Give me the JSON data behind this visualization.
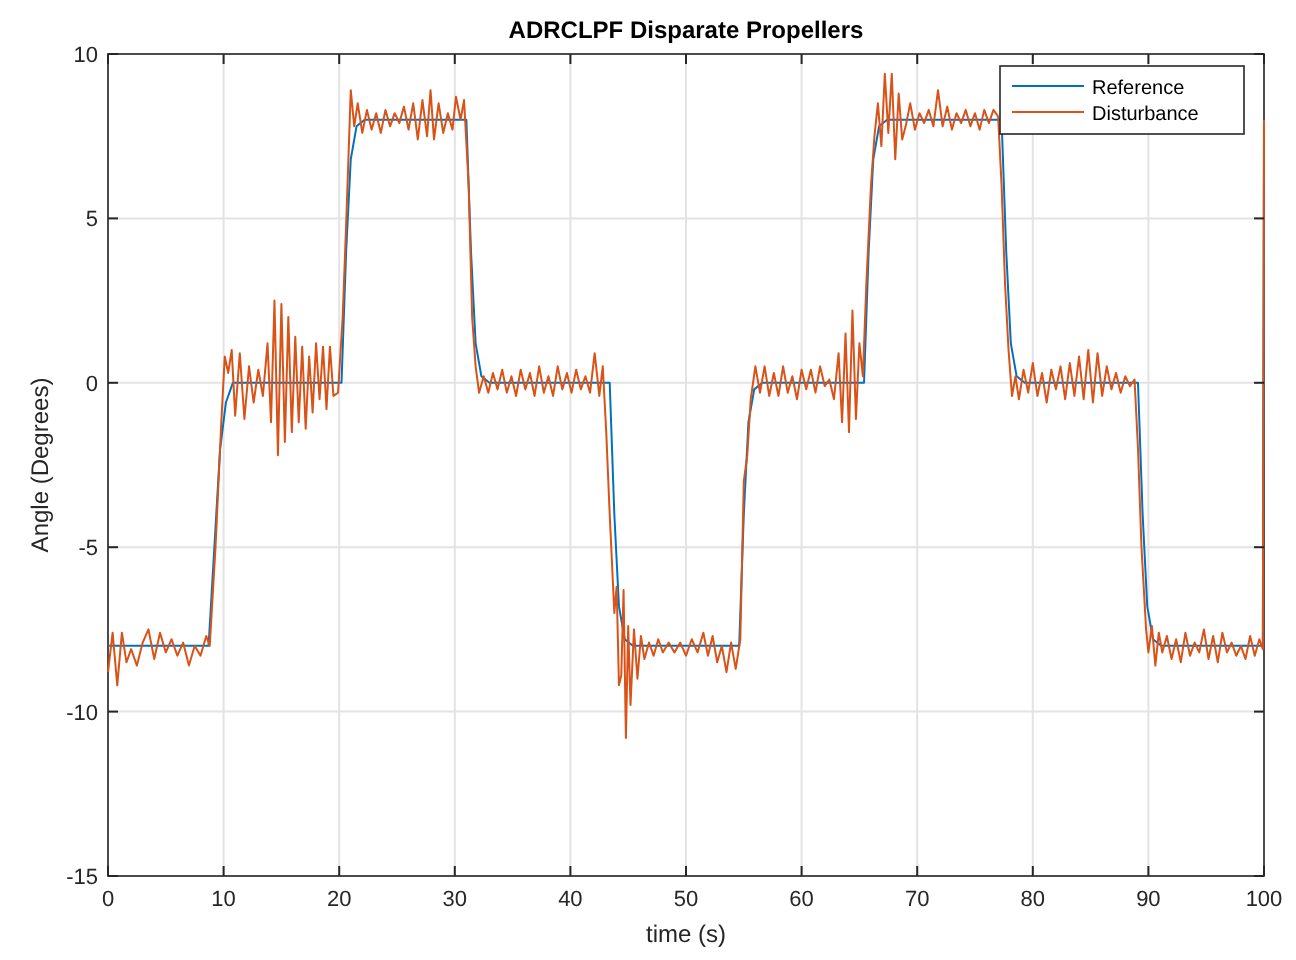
{
  "chart_data": {
    "type": "line",
    "title": "ADRCLPF Disparate Propellers",
    "xlabel": "time (s)",
    "ylabel": "Angle (Degrees)",
    "xlim": [
      0,
      100
    ],
    "xticks": [
      0,
      10,
      20,
      30,
      40,
      50,
      60,
      70,
      80,
      90,
      100
    ],
    "ylim": [
      -15,
      10
    ],
    "yticks": [
      -15,
      -10,
      -5,
      0,
      5,
      10
    ],
    "grid": true,
    "legend": "top right",
    "line_style": "solid",
    "marker": "none",
    "series": [
      {
        "name": "Reference",
        "color": "#0072bd",
        "x": [
          0,
          8.7,
          9.2,
          9.7,
          10.2,
          10.8,
          20.2,
          20.6,
          21.0,
          21.5,
          22.2,
          31,
          31.4,
          31.8,
          32.3,
          33,
          43.4,
          43.8,
          44.2,
          44.7,
          45.4,
          54.6,
          55,
          55.4,
          55.9,
          56.6,
          65.4,
          65.8,
          66.2,
          66.7,
          67.4,
          77.3,
          77.7,
          78.1,
          78.6,
          79.3,
          89.1,
          89.5,
          89.9,
          90.4,
          91.1,
          99.9,
          100
        ],
        "values": [
          -8,
          -8,
          -5,
          -2,
          -0.6,
          0,
          0,
          4,
          6.8,
          7.8,
          8,
          8,
          4,
          1.2,
          0.2,
          0,
          0,
          -4,
          -6.8,
          -7.8,
          -8,
          -8,
          -4,
          -1.2,
          -0.2,
          0,
          0,
          4,
          6.8,
          7.8,
          8,
          8,
          4,
          1.2,
          0.2,
          0,
          0,
          -4,
          -6.8,
          -7.8,
          -8,
          -8,
          8
        ]
      },
      {
        "name": "Disturbance",
        "color": "#d95319",
        "x": [
          0,
          0.4,
          0.8,
          1.2,
          1.6,
          2,
          2.5,
          3,
          3.5,
          4,
          4.5,
          5,
          5.5,
          6,
          6.5,
          7,
          7.5,
          8,
          8.5,
          8.8,
          9.3,
          9.8,
          10.1,
          10.4,
          10.7,
          11,
          11.4,
          11.8,
          12.2,
          12.6,
          13,
          13.4,
          13.8,
          14.1,
          14.4,
          14.7,
          15,
          15.3,
          15.6,
          15.9,
          16.2,
          16.5,
          16.8,
          17.1,
          17.4,
          17.7,
          18,
          18.3,
          18.6,
          18.9,
          19.2,
          19.5,
          19.9,
          20.3,
          20.6,
          21,
          21.3,
          21.6,
          22,
          22.4,
          22.8,
          23.2,
          23.6,
          24,
          24.4,
          24.8,
          25.2,
          25.6,
          26,
          26.4,
          26.8,
          27.2,
          27.6,
          27.9,
          28.2,
          28.6,
          29,
          29.4,
          29.8,
          30.1,
          30.5,
          30.8,
          31.2,
          31.5,
          31.8,
          32.1,
          32.5,
          32.9,
          33.3,
          33.7,
          34.1,
          34.5,
          34.9,
          35.3,
          35.7,
          36.1,
          36.5,
          36.9,
          37.3,
          37.7,
          38.1,
          38.5,
          38.9,
          39.3,
          39.7,
          40.1,
          40.5,
          40.9,
          41.3,
          41.7,
          42.1,
          42.5,
          42.8,
          43.1,
          43.4,
          43.8,
          44.0,
          44.2,
          44.4,
          44.6,
          44.8,
          45,
          45.2,
          45.5,
          45.8,
          46.1,
          46.4,
          46.8,
          47.2,
          47.6,
          48,
          48.5,
          49,
          49.5,
          50,
          50.5,
          51,
          51.5,
          51.9,
          52.3,
          52.7,
          53.1,
          53.5,
          53.9,
          54.3,
          54.7,
          55,
          55.3,
          55.6,
          56,
          56.4,
          56.8,
          57.2,
          57.6,
          58,
          58.4,
          58.8,
          59.2,
          59.6,
          60,
          60.4,
          60.8,
          61.2,
          61.6,
          62,
          62.4,
          62.8,
          63.2,
          63.5,
          63.8,
          64.1,
          64.4,
          64.7,
          65,
          65.3,
          65.6,
          66,
          66.3,
          66.6,
          66.9,
          67.2,
          67.5,
          67.8,
          68.1,
          68.4,
          68.7,
          69,
          69.4,
          69.8,
          70.2,
          70.6,
          71,
          71.4,
          71.8,
          72.2,
          72.6,
          73,
          73.4,
          73.8,
          74.2,
          74.6,
          75,
          75.4,
          75.8,
          76.2,
          76.6,
          77,
          77.3,
          77.6,
          77.9,
          78.2,
          78.5,
          78.8,
          79.2,
          79.6,
          80,
          80.4,
          80.8,
          81.2,
          81.6,
          82,
          82.4,
          82.8,
          83.2,
          83.6,
          84,
          84.4,
          84.8,
          85.2,
          85.6,
          86,
          86.4,
          86.8,
          87.2,
          87.6,
          88,
          88.4,
          88.8,
          89.1,
          89.4,
          89.8,
          90,
          90.3,
          90.6,
          90.9,
          91.2,
          91.6,
          92,
          92.4,
          92.8,
          93.2,
          93.6,
          94,
          94.4,
          94.8,
          95.2,
          95.6,
          96,
          96.4,
          96.8,
          97.2,
          97.6,
          98,
          98.4,
          98.8,
          99.2,
          99.6,
          99.9,
          100
        ],
        "values": [
          -8.8,
          -7.6,
          -9.2,
          -7.6,
          -8.5,
          -8.1,
          -8.6,
          -7.9,
          -7.5,
          -8.4,
          -7.6,
          -8.2,
          -7.8,
          -8.3,
          -7.9,
          -8.6,
          -8,
          -8.3,
          -7.7,
          -8,
          -5,
          -1.2,
          0.8,
          0.3,
          1,
          -1,
          0.9,
          -1.1,
          0.5,
          -0.6,
          0.4,
          -0.4,
          1.2,
          -1.2,
          2.5,
          -2.2,
          2.4,
          -1.8,
          2,
          -1.5,
          1.4,
          -1.2,
          1.1,
          -1.4,
          0.8,
          -0.9,
          1.2,
          -0.5,
          1.1,
          -0.8,
          1.1,
          -0.4,
          -0.3,
          2,
          4.8,
          8.9,
          7.8,
          8.5,
          7.6,
          8.3,
          7.7,
          8.2,
          7.6,
          8.3,
          7.8,
          8.2,
          7.9,
          8.4,
          7.7,
          8.5,
          7.4,
          8.6,
          7.5,
          8.9,
          7.4,
          8.5,
          7.6,
          8.2,
          7.7,
          8.7,
          8,
          8.6,
          6,
          2,
          0.5,
          -0.3,
          0.2,
          -0.3,
          0.3,
          -0.2,
          0.4,
          -0.3,
          0.2,
          -0.4,
          0.4,
          -0.2,
          0.3,
          -0.4,
          0.5,
          -0.3,
          0.2,
          -0.4,
          0.5,
          -0.2,
          0.3,
          -0.3,
          0.4,
          -0.2,
          0.2,
          -0.3,
          0.9,
          -0.4,
          0.5,
          -1.5,
          -4,
          -7,
          -6.2,
          -9.2,
          -8.9,
          -6.3,
          -10.8,
          -7.4,
          -9.8,
          -7.5,
          -9,
          -7.7,
          -8.4,
          -7.9,
          -8.3,
          -7.8,
          -8.2,
          -7.9,
          -8.2,
          -7.9,
          -8.3,
          -7.8,
          -8.2,
          -7.6,
          -8.3,
          -7.7,
          -8.5,
          -8,
          -8.8,
          -7.9,
          -8.7,
          -7.8,
          -3,
          -2.2,
          -0.5,
          0.5,
          -0.3,
          0.5,
          -0.4,
          0.3,
          -0.4,
          0.5,
          -0.3,
          0.2,
          -0.5,
          0.4,
          -0.2,
          0.4,
          -0.3,
          0.5,
          -0.1,
          0.1,
          -0.5,
          0.9,
          -1.2,
          1.5,
          -1.5,
          2.2,
          -1.1,
          1.2,
          0.2,
          3,
          6,
          7.5,
          8.5,
          7.2,
          9.4,
          7.6,
          9.4,
          6.8,
          8.8,
          7.4,
          7.8,
          8.5,
          7.7,
          8.2,
          7.9,
          8.3,
          7.8,
          8.9,
          7.8,
          8.4,
          7.7,
          8.2,
          7.9,
          8.3,
          7.8,
          8.2,
          7.7,
          8.3,
          7.9,
          8.3,
          8.1,
          6,
          3,
          1,
          -0.4,
          0.2,
          -0.5,
          0.4,
          -0.3,
          0.6,
          -0.4,
          0.3,
          -0.6,
          0.4,
          -0.2,
          0.5,
          -0.5,
          0.6,
          -0.4,
          0.8,
          -0.5,
          1,
          -0.6,
          0.9,
          -0.4,
          0.5,
          -0.2,
          0.3,
          -0.3,
          0.2,
          -0.1,
          0.1,
          -2,
          -5,
          -7.5,
          -8.2,
          -7.4,
          -8.6,
          -7.6,
          -8.2,
          -7.7,
          -8.4,
          -7.8,
          -8.5,
          -7.6,
          -8.3,
          -7.9,
          -8.2,
          -7.5,
          -8.4,
          -7.7,
          -8.5,
          -7.6,
          -8.2,
          -7.9,
          -8.3,
          -8,
          -8.4,
          -7.7,
          -8.3,
          -7.8,
          -8.1,
          8
        ]
      }
    ]
  }
}
